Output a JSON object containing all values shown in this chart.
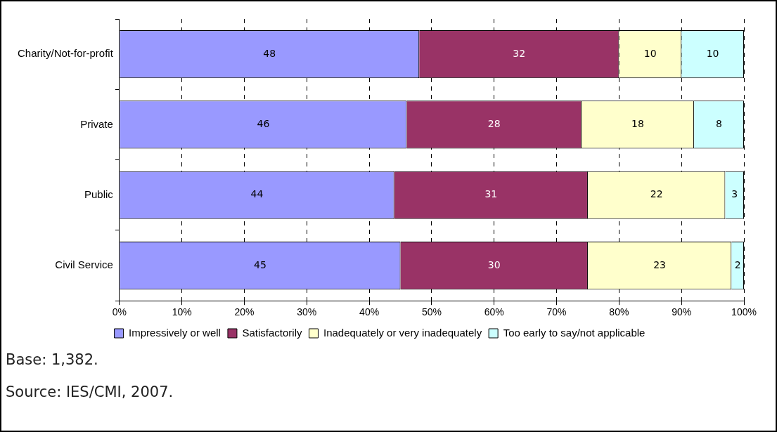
{
  "chart_data": {
    "type": "bar",
    "orientation": "horizontal",
    "stacked": true,
    "categories": [
      "Charity/Not-for-profit",
      "Private",
      "Public",
      "Civil Service"
    ],
    "series": [
      {
        "name": "Impressively or well",
        "color": "#9999ff",
        "values": [
          48,
          46,
          44,
          45
        ]
      },
      {
        "name": "Satisfactorily",
        "color": "#993366",
        "values": [
          32,
          28,
          31,
          30
        ]
      },
      {
        "name": "Inadequately or very inadequately",
        "color": "#ffffcc",
        "values": [
          10,
          18,
          22,
          23
        ]
      },
      {
        "name": "Too early to say/not applicable",
        "color": "#ccffff",
        "values": [
          10,
          8,
          3,
          2
        ]
      }
    ],
    "xlim": [
      0,
      100
    ],
    "xticks": [
      {
        "value": 0,
        "label": "0%"
      },
      {
        "value": 10,
        "label": "10%"
      },
      {
        "value": 20,
        "label": "20%"
      },
      {
        "value": 30,
        "label": "30%"
      },
      {
        "value": 40,
        "label": "40%"
      },
      {
        "value": 50,
        "label": "50%"
      },
      {
        "value": 60,
        "label": "60%"
      },
      {
        "value": 70,
        "label": "70%"
      },
      {
        "value": 80,
        "label": "80%"
      },
      {
        "value": 90,
        "label": "90%"
      },
      {
        "value": 100,
        "label": "100%"
      }
    ],
    "grid": "x",
    "legend": "bottom",
    "data_labels": true,
    "annotations": [
      "Base: 1,382.",
      "Source: IES/CMI, 2007."
    ]
  }
}
